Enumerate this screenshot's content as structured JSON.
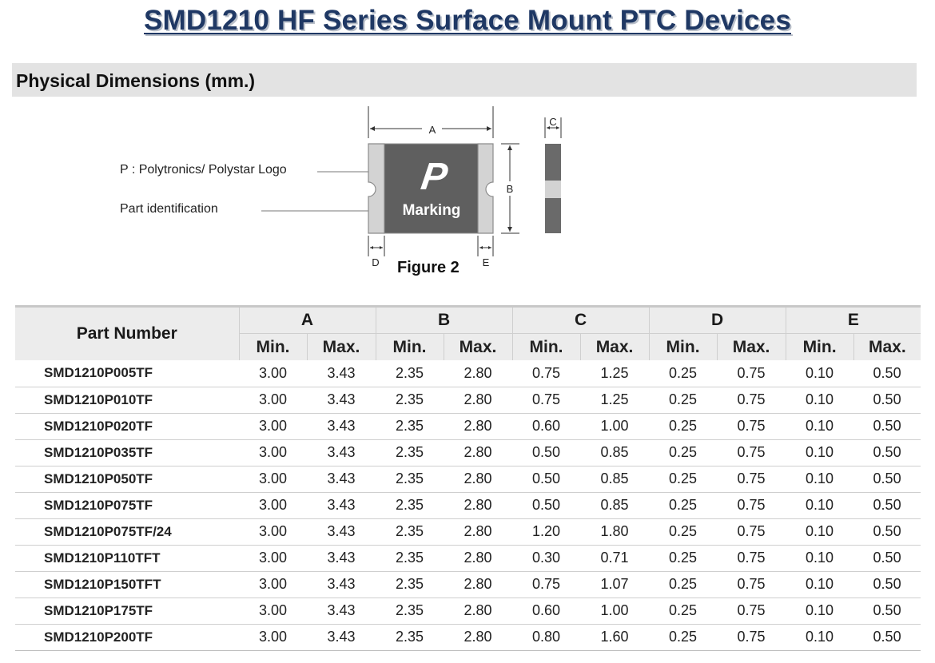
{
  "title": "SMD1210 HF Series Surface Mount PTC Devices",
  "section_title": "Physical Dimensions (mm.)",
  "figure": {
    "logo_label": "P : Polytronics/ Polystar Logo",
    "part_id_label": "Part identification",
    "logo_glyph": "P",
    "marking": "Marking",
    "caption": "Figure 2",
    "dim_a": "A",
    "dim_b": "B",
    "dim_c": "C",
    "dim_d": "D",
    "dim_e": "E",
    "colors": {
      "body": "#5f5f5f",
      "terminal": "#d3d3d3",
      "terminal_edge": "#8c8c8c"
    }
  },
  "table": {
    "part_header": "Part Number",
    "groups": [
      "A",
      "B",
      "C",
      "D",
      "E"
    ],
    "min_label": "Min.",
    "max_label": "Max.",
    "rows": [
      {
        "part": "SMD1210P005TF",
        "values": [
          "3.00",
          "3.43",
          "2.35",
          "2.80",
          "0.75",
          "1.25",
          "0.25",
          "0.75",
          "0.10",
          "0.50"
        ]
      },
      {
        "part": "SMD1210P010TF",
        "values": [
          "3.00",
          "3.43",
          "2.35",
          "2.80",
          "0.75",
          "1.25",
          "0.25",
          "0.75",
          "0.10",
          "0.50"
        ]
      },
      {
        "part": "SMD1210P020TF",
        "values": [
          "3.00",
          "3.43",
          "2.35",
          "2.80",
          "0.60",
          "1.00",
          "0.25",
          "0.75",
          "0.10",
          "0.50"
        ]
      },
      {
        "part": "SMD1210P035TF",
        "values": [
          "3.00",
          "3.43",
          "2.35",
          "2.80",
          "0.50",
          "0.85",
          "0.25",
          "0.75",
          "0.10",
          "0.50"
        ]
      },
      {
        "part": "SMD1210P050TF",
        "values": [
          "3.00",
          "3.43",
          "2.35",
          "2.80",
          "0.50",
          "0.85",
          "0.25",
          "0.75",
          "0.10",
          "0.50"
        ]
      },
      {
        "part": "SMD1210P075TF",
        "values": [
          "3.00",
          "3.43",
          "2.35",
          "2.80",
          "0.50",
          "0.85",
          "0.25",
          "0.75",
          "0.10",
          "0.50"
        ]
      },
      {
        "part": "SMD1210P075TF/24",
        "values": [
          "3.00",
          "3.43",
          "2.35",
          "2.80",
          "1.20",
          "1.80",
          "0.25",
          "0.75",
          "0.10",
          "0.50"
        ]
      },
      {
        "part": "SMD1210P110TFT",
        "values": [
          "3.00",
          "3.43",
          "2.35",
          "2.80",
          "0.30",
          "0.71",
          "0.25",
          "0.75",
          "0.10",
          "0.50"
        ]
      },
      {
        "part": "SMD1210P150TFT",
        "values": [
          "3.00",
          "3.43",
          "2.35",
          "2.80",
          "0.75",
          "1.07",
          "0.25",
          "0.75",
          "0.10",
          "0.50"
        ]
      },
      {
        "part": "SMD1210P175TF",
        "values": [
          "3.00",
          "3.43",
          "2.35",
          "2.80",
          "0.60",
          "1.00",
          "0.25",
          "0.75",
          "0.10",
          "0.50"
        ]
      },
      {
        "part": "SMD1210P200TF",
        "values": [
          "3.00",
          "3.43",
          "2.35",
          "2.80",
          "0.80",
          "1.60",
          "0.25",
          "0.75",
          "0.10",
          "0.50"
        ]
      }
    ]
  }
}
